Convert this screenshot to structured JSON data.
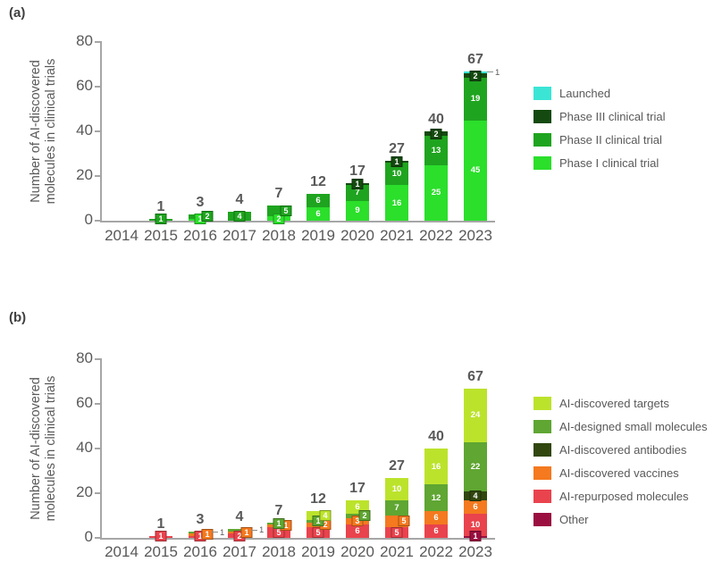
{
  "styles": {
    "background": "#ffffff",
    "text_color": "#595959",
    "axis_color": "#a6a6a6",
    "panel_label_color": "#3f3f3f",
    "segment_label_color": "#ffffff"
  },
  "chart_data": [
    {
      "panel_label": "(a)",
      "type": "bar",
      "subtype": "stacked",
      "title": "",
      "xlabel": "",
      "ylabel": "Number of AI-discovered molecules in clinical trials",
      "ylabel_lines": [
        "Number of AI-discovered",
        "molecules in clinical trials"
      ],
      "ylim": [
        0,
        80
      ],
      "yticks": [
        0,
        20,
        40,
        60,
        80
      ],
      "grid": false,
      "legend_position": "right",
      "categories": [
        "2014",
        "2015",
        "2016",
        "2017",
        "2018",
        "2019",
        "2020",
        "2021",
        "2022",
        "2023"
      ],
      "totals": [
        "",
        "1",
        "3",
        "4",
        "7",
        "12",
        "17",
        "27",
        "40",
        "67"
      ],
      "series": [
        {
          "name": "Phase I clinical trial",
          "color": "#2BDF2B",
          "values": [
            0,
            0,
            1,
            0,
            2,
            6,
            9,
            16,
            25,
            45
          ]
        },
        {
          "name": "Phase II clinical trial",
          "color": "#1FA41F",
          "values": [
            0,
            1,
            2,
            4,
            5,
            6,
            7,
            10,
            13,
            19
          ]
        },
        {
          "name": "Phase III clinical trial",
          "color": "#144A0F",
          "values": [
            0,
            0,
            0,
            0,
            0,
            0,
            1,
            1,
            2,
            2
          ]
        },
        {
          "name": "Launched",
          "color": "#3BE5D5",
          "values": [
            0,
            0,
            0,
            0,
            0,
            0,
            0,
            0,
            0,
            1
          ]
        }
      ],
      "legend_order_top_to_bottom": [
        "Launched",
        "Phase III clinical trial",
        "Phase II clinical trial",
        "Phase I clinical trial"
      ],
      "callouts": [
        {
          "series": 3,
          "category": 9,
          "label": "1"
        }
      ]
    },
    {
      "panel_label": "(b)",
      "type": "bar",
      "subtype": "stacked",
      "title": "",
      "xlabel": "",
      "ylabel": "Number of AI-discovered molecules in clinical trials",
      "ylabel_lines": [
        "Number of AI-discovered",
        "molecules in clinical trials"
      ],
      "ylim": [
        0,
        80
      ],
      "yticks": [
        0,
        20,
        40,
        60,
        80
      ],
      "grid": false,
      "legend_position": "right",
      "categories": [
        "2014",
        "2015",
        "2016",
        "2017",
        "2018",
        "2019",
        "2020",
        "2021",
        "2022",
        "2023"
      ],
      "totals": [
        "",
        "1",
        "3",
        "4",
        "7",
        "12",
        "17",
        "27",
        "40",
        "67"
      ],
      "series": [
        {
          "name": "Other",
          "color": "#9A0F40",
          "values": [
            0,
            0,
            0,
            0,
            0,
            0,
            0,
            0,
            0,
            1
          ]
        },
        {
          "name": "AI-repurposed molecules",
          "color": "#E9434D",
          "values": [
            0,
            1,
            1,
            2,
            5,
            5,
            6,
            5,
            6,
            10
          ]
        },
        {
          "name": "AI-discovered vaccines",
          "color": "#F4791F",
          "values": [
            0,
            0,
            1,
            1,
            1,
            2,
            3,
            5,
            6,
            6
          ]
        },
        {
          "name": "AI-discovered antibodies",
          "color": "#31470F",
          "values": [
            0,
            0,
            0,
            0,
            0,
            0,
            0,
            0,
            0,
            4
          ]
        },
        {
          "name": "AI-designed small molecules",
          "color": "#5FA632",
          "values": [
            0,
            0,
            1,
            1,
            1,
            1,
            2,
            7,
            12,
            22
          ]
        },
        {
          "name": "AI-discovered targets",
          "color": "#BCE32C",
          "values": [
            0,
            0,
            0,
            0,
            0,
            4,
            6,
            10,
            16,
            24
          ]
        }
      ],
      "legend_order_top_to_bottom": [
        "AI-discovered targets",
        "AI-designed small molecules",
        "AI-discovered antibodies",
        "AI-discovered vaccines",
        "AI-repurposed molecules",
        "Other"
      ],
      "callouts": [
        {
          "series": 4,
          "category": 2,
          "label": "1"
        },
        {
          "series": 4,
          "category": 3,
          "label": "1"
        }
      ]
    }
  ]
}
